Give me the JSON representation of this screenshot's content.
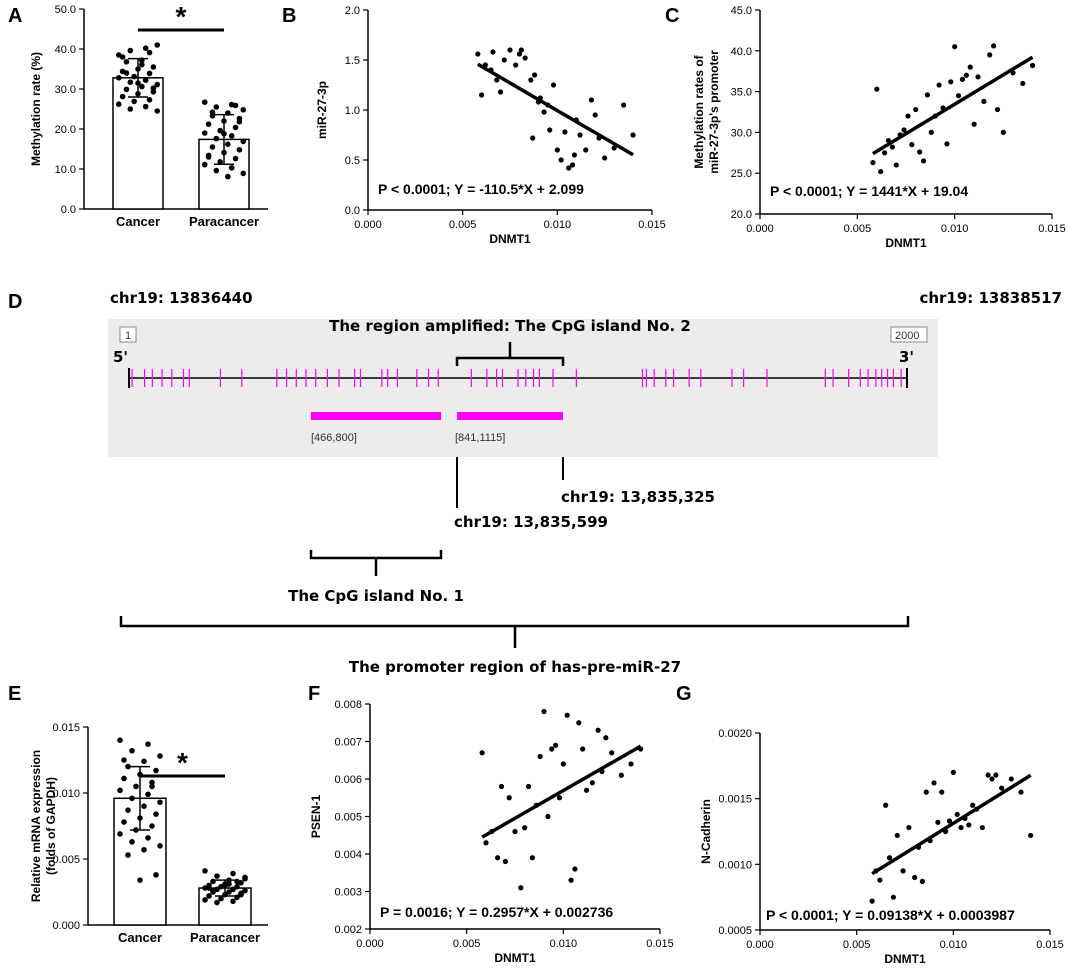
{
  "colors": {
    "cpg": "#ff00ff",
    "panel_bg": "#ececec",
    "ink": "#000000"
  },
  "chart_data": [
    {
      "id": "A",
      "type": "bar",
      "title": "",
      "categories": [
        "Cancer",
        "Paracancer"
      ],
      "values": [
        32.8,
        17.4
      ],
      "errors": [
        4.8,
        6.2
      ],
      "ylabel": "Methylation rate (%)",
      "xlabel": "",
      "ylim": [
        0,
        50
      ],
      "yticks": [
        "0.0",
        "10.0",
        "20.0",
        "30.0",
        "40.0",
        "50.0"
      ],
      "significance": "*",
      "points": [
        [
          38.5,
          40.2,
          39.6,
          41.0,
          37.2,
          36.8,
          35.5,
          35.0,
          34.4,
          33.9,
          33.1,
          32.8,
          32.2,
          31.7,
          31.1,
          30.6,
          29.9,
          29.3,
          28.8,
          28.1,
          27.3,
          26.9,
          26.2,
          25.6,
          25.0,
          24.5,
          36.1,
          34.0,
          30.2,
          31.5,
          38.0,
          39.1
        ],
        [
          26.7,
          26.1,
          25.5,
          24.8,
          24.0,
          23.3,
          22.6,
          22.0,
          21.2,
          20.4,
          19.6,
          19.0,
          18.3,
          17.6,
          16.9,
          16.2,
          15.5,
          14.8,
          14.1,
          13.4,
          12.6,
          11.8,
          11.1,
          10.3,
          9.6,
          8.9,
          8.1,
          24.2,
          21.8,
          18.8,
          13.0,
          25.9
        ]
      ]
    },
    {
      "id": "B",
      "type": "scatter",
      "ylabel": "miR-27-3p",
      "xlabel": "DNMT1",
      "xlim": [
        0,
        0.015
      ],
      "ylim": [
        0,
        2
      ],
      "xticks": [
        "0.000",
        "0.005",
        "0.010",
        "0.015"
      ],
      "yticks": [
        "0.0",
        "0.5",
        "1.0",
        "1.5",
        "2.0"
      ],
      "equation": "P < 0.0001; Y = -110.5*X + 2.099",
      "fit": {
        "slope": -110.5,
        "intercept": 2.099,
        "xrange": [
          0.0058,
          0.014
        ]
      },
      "x": [
        0.0058,
        0.0062,
        0.0065,
        0.0066,
        0.0068,
        0.007,
        0.0072,
        0.0075,
        0.0078,
        0.008,
        0.0081,
        0.0083,
        0.0086,
        0.0088,
        0.009,
        0.0091,
        0.0093,
        0.0095,
        0.0096,
        0.0098,
        0.01,
        0.0102,
        0.0104,
        0.0106,
        0.0108,
        0.011,
        0.0112,
        0.0115,
        0.0118,
        0.012,
        0.0122,
        0.0125,
        0.013,
        0.0135,
        0.014,
        0.006,
        0.0087,
        0.0109
      ],
      "y": [
        1.56,
        1.45,
        1.4,
        1.58,
        1.3,
        1.18,
        1.5,
        1.6,
        1.45,
        1.56,
        1.6,
        1.52,
        1.3,
        1.35,
        1.08,
        1.12,
        0.98,
        1.05,
        0.8,
        1.25,
        0.6,
        0.5,
        0.78,
        0.42,
        0.45,
        0.9,
        0.75,
        0.6,
        1.1,
        0.95,
        0.72,
        0.52,
        0.62,
        1.05,
        0.75,
        1.15,
        0.72,
        0.55
      ]
    },
    {
      "id": "C",
      "type": "scatter",
      "ylabel": "Methylation rates of miR-27-3p's promoter",
      "xlabel": "DNMT1",
      "ylabel_lines": [
        "Methylation rates of",
        "miR-27-3p's promoter"
      ],
      "xlim": [
        0,
        0.015
      ],
      "ylim": [
        20,
        45
      ],
      "xticks": [
        "0.000",
        "0.005",
        "0.010",
        "0.015"
      ],
      "yticks": [
        "20.0",
        "25.0",
        "30.0",
        "35.0",
        "40.0",
        "45.0"
      ],
      "equation": "P < 0.0001; Y = 1441*X + 19.04",
      "fit": {
        "slope": 1441,
        "intercept": 19.04,
        "xrange": [
          0.0058,
          0.014
        ]
      },
      "x": [
        0.0058,
        0.006,
        0.0062,
        0.0064,
        0.0066,
        0.0068,
        0.007,
        0.0072,
        0.0074,
        0.0076,
        0.0078,
        0.008,
        0.0082,
        0.0084,
        0.0086,
        0.0088,
        0.009,
        0.0092,
        0.0094,
        0.0096,
        0.0098,
        0.01,
        0.0102,
        0.0104,
        0.0106,
        0.0108,
        0.011,
        0.0112,
        0.0115,
        0.0118,
        0.012,
        0.0122,
        0.0125,
        0.013,
        0.0135,
        0.014
      ],
      "y": [
        26.3,
        35.3,
        25.2,
        27.5,
        29.0,
        28.2,
        26.0,
        29.7,
        30.3,
        32.0,
        28.5,
        32.8,
        27.6,
        26.5,
        34.6,
        30.0,
        32.0,
        35.8,
        33.0,
        28.6,
        36.2,
        40.5,
        34.5,
        36.5,
        37.0,
        38.0,
        31.0,
        36.8,
        33.8,
        39.5,
        40.6,
        32.8,
        30.0,
        37.3,
        36.0,
        38.2
      ]
    },
    {
      "id": "E",
      "type": "bar",
      "title": "",
      "categories": [
        "Cancer",
        "Paracancer"
      ],
      "values": [
        0.0096,
        0.0028
      ],
      "errors": [
        0.0024,
        0.0006
      ],
      "ylabel": "Relative mRNA expression (folds of GAPDH)",
      "xlabel": "",
      "ylabel_lines": [
        "Relative mRNA expression",
        "(folds of GAPDH)"
      ],
      "ylim": [
        0,
        0.015
      ],
      "yticks": [
        "0.000",
        "0.005",
        "0.010",
        "0.015"
      ],
      "significance": "*",
      "points": [
        [
          0.014,
          0.0137,
          0.0132,
          0.0128,
          0.0124,
          0.012,
          0.0117,
          0.0114,
          0.0111,
          0.0108,
          0.0105,
          0.0102,
          0.0099,
          0.0096,
          0.0093,
          0.009,
          0.0087,
          0.0084,
          0.0081,
          0.0078,
          0.0075,
          0.0072,
          0.0069,
          0.0066,
          0.0063,
          0.006,
          0.0057,
          0.0053,
          0.0038,
          0.0034,
          0.0125,
          0.0105
        ],
        [
          0.0041,
          0.0039,
          0.0037,
          0.0035,
          0.0034,
          0.0033,
          0.0032,
          0.0031,
          0.003,
          0.0029,
          0.0029,
          0.0028,
          0.0027,
          0.0027,
          0.0026,
          0.0025,
          0.0025,
          0.0024,
          0.0023,
          0.0022,
          0.0021,
          0.002,
          0.0019,
          0.0018,
          0.0017,
          0.0036,
          0.0031,
          0.0026,
          0.0023,
          0.003,
          0.0028,
          0.0033
        ]
      ]
    },
    {
      "id": "F",
      "type": "scatter",
      "ylabel": "PSEN-1",
      "xlabel": "DNMT1",
      "xlim": [
        0,
        0.015
      ],
      "ylim": [
        0.002,
        0.008
      ],
      "xticks": [
        "0.000",
        "0.005",
        "0.010",
        "0.015"
      ],
      "yticks": [
        "0.002",
        "0.003",
        "0.004",
        "0.005",
        "0.006",
        "0.007",
        "0.008"
      ],
      "equation": "P = 0.0016; Y = 0.2957*X + 0.002736",
      "fit": {
        "slope": 0.2957,
        "intercept": 0.002736,
        "xrange": [
          0.0058,
          0.014
        ]
      },
      "x": [
        0.0058,
        0.006,
        0.0063,
        0.0066,
        0.0068,
        0.007,
        0.0072,
        0.0075,
        0.0078,
        0.008,
        0.0082,
        0.0084,
        0.0086,
        0.0088,
        0.009,
        0.0092,
        0.0094,
        0.0096,
        0.0098,
        0.01,
        0.0102,
        0.0104,
        0.0106,
        0.0108,
        0.011,
        0.0112,
        0.0115,
        0.0118,
        0.012,
        0.0122,
        0.0125,
        0.013,
        0.0135,
        0.014
      ],
      "y": [
        0.0067,
        0.0043,
        0.0046,
        0.0039,
        0.0058,
        0.0038,
        0.0055,
        0.0046,
        0.0031,
        0.0047,
        0.0058,
        0.0039,
        0.0053,
        0.0066,
        0.0078,
        0.005,
        0.0068,
        0.0069,
        0.0055,
        0.0064,
        0.0077,
        0.0033,
        0.0036,
        0.0075,
        0.0068,
        0.0057,
        0.0059,
        0.0073,
        0.0062,
        0.0071,
        0.0067,
        0.0061,
        0.0064,
        0.0068
      ]
    },
    {
      "id": "G",
      "type": "scatter",
      "ylabel": "N-Cadherin",
      "xlabel": "DNMT1",
      "xlim": [
        0,
        0.015
      ],
      "ylim": [
        0.0005,
        0.002
      ],
      "xticks": [
        "0.000",
        "0.005",
        "0.010",
        "0.015"
      ],
      "yticks": [
        "0.0005",
        "0.0010",
        "0.0015",
        "0.0020"
      ],
      "equation": "P < 0.0001; Y = 0.09138*X + 0.0003987",
      "fit": {
        "slope": 0.09138,
        "intercept": 0.0003987,
        "xrange": [
          0.0058,
          0.014
        ]
      },
      "x": [
        0.0058,
        0.006,
        0.0062,
        0.0065,
        0.0067,
        0.0069,
        0.0071,
        0.0074,
        0.0077,
        0.008,
        0.0082,
        0.0084,
        0.0086,
        0.0088,
        0.009,
        0.0092,
        0.0094,
        0.0096,
        0.0098,
        0.01,
        0.0102,
        0.0104,
        0.0106,
        0.0108,
        0.011,
        0.0112,
        0.0115,
        0.0118,
        0.012,
        0.0122,
        0.0125,
        0.013,
        0.0135,
        0.014
      ],
      "y": [
        0.00072,
        0.00095,
        0.00088,
        0.00145,
        0.00105,
        0.00075,
        0.00122,
        0.00095,
        0.00128,
        0.0009,
        0.00113,
        0.00087,
        0.00155,
        0.00118,
        0.00162,
        0.00132,
        0.00155,
        0.00125,
        0.00133,
        0.0017,
        0.00138,
        0.00128,
        0.00135,
        0.0013,
        0.00145,
        0.00142,
        0.00128,
        0.00168,
        0.00165,
        0.00168,
        0.00158,
        0.00165,
        0.00155,
        0.00122
      ]
    }
  ],
  "panel_d": {
    "label": "D",
    "coord_left": "chr19: 13836440",
    "coord_right": "chr19: 13838517",
    "marker_start": "1",
    "marker_end": "2000",
    "five_prime": "5'",
    "three_prime": "3'",
    "region_title": "The region amplified: The CpG island No. 2",
    "island1_range": "[466,800]",
    "island2_range": "[841,1115]",
    "island1": [
      466,
      800
    ],
    "island2": [
      841,
      1115
    ],
    "seq_length": 2000,
    "chr_a": "chr19: 13,835,325",
    "chr_b": "chr19: 13,835,599",
    "island1_label": "The CpG island No. 1",
    "promoter_label": "The promoter region of has-pre-miR-27",
    "cpg_sites": [
      8,
      40,
      60,
      85,
      110,
      140,
      155,
      235,
      290,
      380,
      405,
      430,
      455,
      480,
      510,
      540,
      580,
      595,
      650,
      665,
      690,
      740,
      770,
      795,
      880,
      920,
      945,
      960,
      1000,
      1020,
      1040,
      1055,
      1090,
      1150,
      1320,
      1330,
      1350,
      1380,
      1400,
      1440,
      1470,
      1550,
      1580,
      1640,
      1790,
      1810,
      1850,
      1880,
      1900,
      1920,
      1935,
      1950,
      1965,
      1985
    ]
  }
}
